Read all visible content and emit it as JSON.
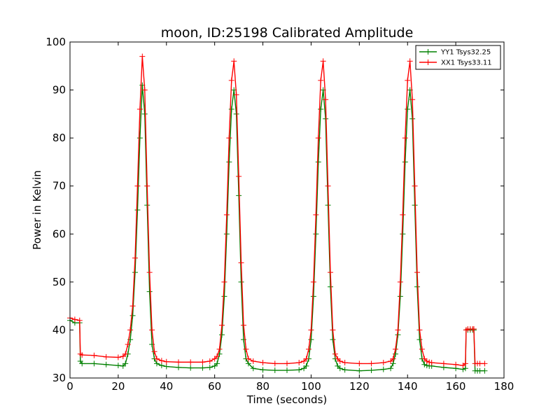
{
  "chart_data": {
    "type": "line",
    "title": "moon, ID:25198 Calibrated Amplitude",
    "xlabel": "Time (seconds)",
    "ylabel": "Power in Kelvin",
    "xlim": [
      0,
      180
    ],
    "ylim": [
      30,
      100
    ],
    "x_ticks": [
      0,
      20,
      40,
      60,
      80,
      100,
      120,
      140,
      160,
      180
    ],
    "y_ticks": [
      30,
      40,
      50,
      60,
      70,
      80,
      90,
      100
    ],
    "grid": false,
    "legend_position": "top-right",
    "marker": "+",
    "series": [
      {
        "name": "YY1 Tsys32.25",
        "color": "#008000",
        "x": [
          0,
          2,
          4,
          4.3,
          5,
          10,
          15,
          20,
          22,
          23,
          24,
          25,
          26,
          27,
          28,
          29,
          30,
          31,
          32,
          33,
          34,
          35,
          36,
          38,
          40,
          45,
          50,
          55,
          58,
          60,
          61,
          62,
          63,
          64,
          65,
          66,
          67,
          68,
          69,
          70,
          71,
          72,
          73,
          74,
          76,
          80,
          85,
          90,
          95,
          97,
          98,
          99,
          100,
          101,
          102,
          103,
          104,
          105,
          106,
          107,
          108,
          109,
          110,
          111,
          112,
          114,
          120,
          125,
          130,
          133,
          134,
          135,
          136,
          137,
          138,
          139,
          140,
          141,
          142,
          143,
          144,
          145,
          146,
          147,
          148,
          149,
          150,
          155,
          160,
          163,
          164,
          164.3,
          165,
          166,
          167,
          167.5,
          168,
          169,
          170,
          172
        ],
        "y": [
          42,
          41.5,
          41.5,
          33.5,
          33,
          33,
          32.8,
          32.6,
          32.5,
          33,
          35,
          38,
          43,
          52,
          65,
          80,
          91,
          85,
          66,
          48,
          37,
          34,
          33,
          32.6,
          32.4,
          32.2,
          32.1,
          32.1,
          32.2,
          32.5,
          33,
          35,
          39,
          47,
          60,
          75,
          86,
          90,
          85,
          68,
          50,
          38,
          34,
          33,
          32,
          31.7,
          31.6,
          31.6,
          31.7,
          32,
          32.5,
          34,
          38,
          47,
          60,
          75,
          86,
          90,
          84,
          66,
          49,
          38,
          34,
          32.5,
          32,
          31.7,
          31.5,
          31.6,
          31.8,
          32,
          33,
          35,
          39,
          47,
          60,
          75,
          86,
          90,
          84,
          66,
          49,
          38,
          34,
          32.8,
          32.6,
          32.5,
          32.5,
          32.2,
          32,
          31.8,
          32,
          40,
          40,
          40,
          40,
          40,
          31.5,
          31.5,
          31.5,
          31.5
        ]
      },
      {
        "name": "XX1 Tsys33.11",
        "color": "#ff0000",
        "x": [
          0,
          2,
          4,
          4.3,
          5,
          10,
          15,
          20,
          22,
          23,
          24,
          25,
          26,
          27,
          28,
          29,
          30,
          31,
          32,
          33,
          34,
          35,
          36,
          38,
          40,
          45,
          50,
          55,
          58,
          60,
          61,
          62,
          63,
          64,
          65,
          66,
          67,
          68,
          69,
          70,
          71,
          72,
          73,
          74,
          76,
          80,
          85,
          90,
          95,
          97,
          98,
          99,
          100,
          101,
          102,
          103,
          104,
          105,
          106,
          107,
          108,
          109,
          110,
          111,
          112,
          114,
          120,
          125,
          130,
          133,
          134,
          135,
          136,
          137,
          138,
          139,
          140,
          141,
          142,
          143,
          144,
          145,
          146,
          147,
          148,
          149,
          150,
          155,
          160,
          163,
          164,
          164.3,
          165,
          166,
          167,
          167.5,
          168,
          169,
          170,
          172
        ],
        "y": [
          42.5,
          42.2,
          42,
          35,
          34.8,
          34.7,
          34.4,
          34.3,
          34.5,
          35,
          37,
          40,
          45,
          55,
          70,
          86,
          97,
          90,
          70,
          52,
          40,
          35.5,
          34,
          33.6,
          33.4,
          33.3,
          33.3,
          33.3,
          33.5,
          34,
          34.5,
          36,
          41,
          50,
          64,
          80,
          92,
          96,
          89,
          72,
          54,
          41,
          36,
          34,
          33.5,
          33.2,
          33,
          33,
          33.2,
          33.5,
          34,
          36,
          40,
          50,
          64,
          80,
          92,
          96,
          88,
          70,
          52,
          40,
          35,
          34,
          33.5,
          33.2,
          33,
          33,
          33.2,
          33.5,
          34,
          36,
          40,
          50,
          64,
          80,
          92,
          96,
          88,
          70,
          52,
          40,
          36,
          34,
          33.5,
          33.3,
          33.2,
          33,
          32.8,
          32.6,
          33,
          40,
          40.2,
          40.2,
          40.2,
          40.2,
          33,
          33,
          33,
          33
        ]
      }
    ]
  }
}
